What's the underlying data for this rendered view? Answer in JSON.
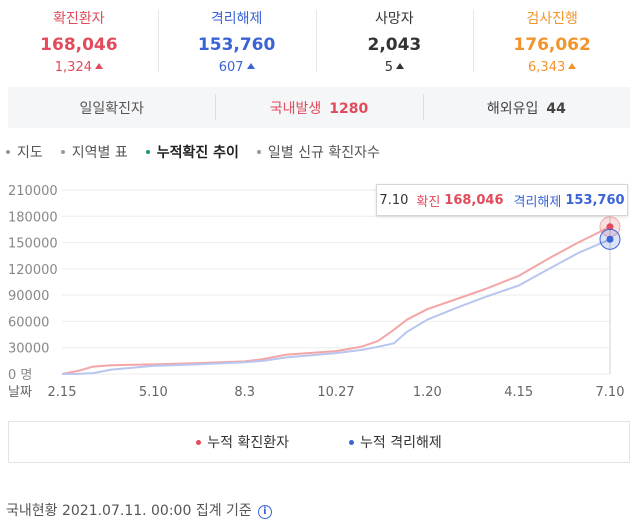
{
  "stats": [
    {
      "label": "확진환자",
      "value": "168,046",
      "delta": "1,324",
      "color": "#e24b5b"
    },
    {
      "label": "격리해제",
      "value": "153,760",
      "delta": "607",
      "color": "#3a63d6"
    },
    {
      "label": "사망자",
      "value": "2,043",
      "delta": "5",
      "color": "#333333"
    },
    {
      "label": "검사진행",
      "value": "176,062",
      "delta": "6,343",
      "color": "#f2942c"
    }
  ],
  "daily": {
    "title": "일일확진자",
    "domestic_label": "국내발생",
    "domestic_value": "1280",
    "overseas_label": "해외유입",
    "overseas_value": "44"
  },
  "tabs": [
    {
      "label": "지도",
      "active": false
    },
    {
      "label": "지역별 표",
      "active": false
    },
    {
      "label": "누적확진 추이",
      "active": true
    },
    {
      "label": "일별 신규 확진자수",
      "active": false
    }
  ],
  "tooltip": {
    "date": "7.10",
    "confirmed_label": "확진",
    "confirmed_value": "168,046",
    "released_label": "격리해제",
    "released_value": "153,760"
  },
  "chart_data": {
    "type": "line",
    "xlabel": "날짜",
    "x_ticks": [
      "2.15",
      "5.10",
      "8.3",
      "10.27",
      "1.20",
      "4.15",
      "7.10"
    ],
    "y_ticks": [
      "0 명",
      "30000",
      "60000",
      "90000",
      "120000",
      "150000",
      "180000",
      "210000"
    ],
    "ylim": [
      0,
      210000
    ],
    "grid": true,
    "series": [
      {
        "name": "누적 확진환자",
        "color": "#f4a6a6",
        "x": [
          "2.15",
          "3.1",
          "3.15",
          "4.1",
          "5.10",
          "6.20",
          "8.3",
          "8.20",
          "9.10",
          "10.27",
          "11.20",
          "12.5",
          "12.20",
          "1.1",
          "1.20",
          "2.15",
          "3.15",
          "4.15",
          "5.15",
          "6.10",
          "7.10"
        ],
        "values": [
          30,
          3500,
          8400,
          10000,
          11000,
          12400,
          14400,
          17000,
          21900,
          26100,
          31300,
          37500,
          50600,
          62000,
          74000,
          85000,
          97000,
          112000,
          133000,
          150000,
          168046
        ]
      },
      {
        "name": "누적 격리해제",
        "color": "#b8c6f0",
        "x": [
          "2.15",
          "3.1",
          "3.15",
          "4.1",
          "5.10",
          "6.20",
          "8.3",
          "8.20",
          "9.10",
          "10.27",
          "11.20",
          "12.5",
          "12.20",
          "1.1",
          "1.20",
          "2.15",
          "3.15",
          "4.15",
          "5.15",
          "6.10",
          "7.10"
        ],
        "values": [
          0,
          100,
          1000,
          5000,
          9300,
          11000,
          13400,
          15000,
          18800,
          23900,
          27500,
          31000,
          35000,
          48000,
          62000,
          75000,
          88000,
          101000,
          121000,
          138000,
          153760
        ]
      }
    ]
  },
  "legend": {
    "confirmed": "누적 확진환자",
    "confirmed_color": "#e24b5b",
    "released": "누적 격리해제",
    "released_color": "#3a63d6"
  },
  "footer": {
    "text": "국내현황 2021.07.11. 00:00 집계 기준",
    "info_icon": "info-icon"
  }
}
